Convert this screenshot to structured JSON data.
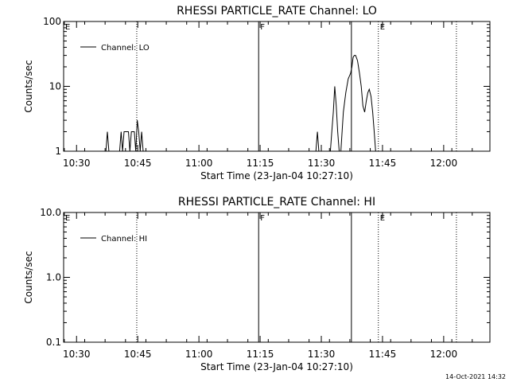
{
  "footer": {
    "timestamp": "14-Oct-2021 14:32"
  },
  "chart_data": [
    {
      "type": "line",
      "title": "RHESSI PARTICLE_RATE Channel: LO",
      "xlabel": "Start Time (23-Jan-04 10:27:10)",
      "ylabel": "Counts/sec",
      "yscale": "log",
      "xlim": [
        10.4472,
        12.1889
      ],
      "ylim": [
        1,
        100
      ],
      "xticks": [
        {
          "value": 10.5,
          "label": "10:30"
        },
        {
          "value": 10.75,
          "label": "10:45"
        },
        {
          "value": 11.0,
          "label": "11:00"
        },
        {
          "value": 11.25,
          "label": "11:15"
        },
        {
          "value": 11.5,
          "label": "11:30"
        },
        {
          "value": 11.75,
          "label": "11:45"
        },
        {
          "value": 12.0,
          "label": "12:00"
        }
      ],
      "yticks": [
        {
          "value": 1,
          "label": "1"
        },
        {
          "value": 10,
          "label": "10"
        },
        {
          "value": 100,
          "label": "100"
        }
      ],
      "legend": {
        "position": "top-left",
        "entries": [
          "Channel: LO"
        ]
      },
      "vlines": [
        {
          "x": 10.746,
          "style": "dotted",
          "label": ""
        },
        {
          "x": 11.244,
          "style": "solid",
          "label": "F"
        },
        {
          "x": 11.623,
          "style": "solid",
          "label": ""
        },
        {
          "x": 11.733,
          "style": "dotted",
          "label": "E"
        },
        {
          "x": 12.052,
          "style": "dotted",
          "label": ""
        }
      ],
      "corner_labels": {
        "left": "E"
      },
      "series": [
        {
          "name": "Channel: LO",
          "segments": [
            [
              [
                10.62,
                1
              ],
              [
                10.626,
                2
              ],
              [
                10.632,
                1
              ]
            ],
            [
              [
                10.676,
                1
              ],
              [
                10.682,
                2
              ],
              [
                10.688,
                1
              ],
              [
                10.694,
                2
              ],
              [
                10.7,
                2
              ],
              [
                10.706,
                2
              ],
              [
                10.712,
                2
              ],
              [
                10.718,
                1
              ],
              [
                10.724,
                2
              ],
              [
                10.73,
                2
              ],
              [
                10.736,
                2
              ],
              [
                10.742,
                1
              ],
              [
                10.748,
                3
              ],
              [
                10.754,
                2
              ],
              [
                10.76,
                1
              ],
              [
                10.766,
                2
              ],
              [
                10.772,
                1
              ]
            ],
            [
              [
                11.478,
                1
              ],
              [
                11.484,
                2
              ],
              [
                11.49,
                1
              ]
            ],
            [
              [
                11.537,
                1
              ],
              [
                11.543,
                2
              ],
              [
                11.549,
                4
              ],
              [
                11.555,
                10
              ],
              [
                11.561,
                5
              ],
              [
                11.567,
                2
              ],
              [
                11.573,
                1
              ]
            ],
            [
              [
                11.58,
                1
              ],
              [
                11.59,
                4
              ],
              [
                11.6,
                8
              ],
              [
                11.61,
                13
              ],
              [
                11.62,
                16
              ],
              [
                11.625,
                20
              ],
              [
                11.63,
                28
              ],
              [
                11.635,
                30
              ],
              [
                11.64,
                30
              ],
              [
                11.648,
                25
              ],
              [
                11.656,
                16
              ],
              [
                11.663,
                10
              ],
              [
                11.67,
                5
              ],
              [
                11.677,
                4
              ],
              [
                11.684,
                6
              ],
              [
                11.69,
                8
              ],
              [
                11.696,
                9
              ],
              [
                11.703,
                7
              ],
              [
                11.71,
                4
              ],
              [
                11.716,
                2
              ],
              [
                11.722,
                1
              ]
            ]
          ]
        }
      ]
    },
    {
      "type": "line",
      "title": "RHESSI PARTICLE_RATE Channel: HI",
      "xlabel": "Start Time (23-Jan-04 10:27:10)",
      "ylabel": "Counts/sec",
      "yscale": "log",
      "xlim": [
        10.4472,
        12.1889
      ],
      "ylim": [
        0.1,
        10
      ],
      "xticks": [
        {
          "value": 10.5,
          "label": "10:30"
        },
        {
          "value": 10.75,
          "label": "10:45"
        },
        {
          "value": 11.0,
          "label": "11:00"
        },
        {
          "value": 11.25,
          "label": "11:15"
        },
        {
          "value": 11.5,
          "label": "11:30"
        },
        {
          "value": 11.75,
          "label": "11:45"
        },
        {
          "value": 12.0,
          "label": "12:00"
        }
      ],
      "yticks": [
        {
          "value": 0.1,
          "label": "0.1"
        },
        {
          "value": 1,
          "label": "1.0"
        },
        {
          "value": 10,
          "label": "10.0"
        }
      ],
      "legend": {
        "position": "top-left",
        "entries": [
          "Channel: HI"
        ]
      },
      "vlines": [
        {
          "x": 10.746,
          "style": "dotted",
          "label": ""
        },
        {
          "x": 11.244,
          "style": "solid",
          "label": "F"
        },
        {
          "x": 11.623,
          "style": "solid",
          "label": ""
        },
        {
          "x": 11.733,
          "style": "dotted",
          "label": "E"
        },
        {
          "x": 12.052,
          "style": "dotted",
          "label": ""
        }
      ],
      "corner_labels": {
        "left": "E"
      },
      "series": [
        {
          "name": "Channel: HI",
          "segments": []
        }
      ]
    }
  ]
}
